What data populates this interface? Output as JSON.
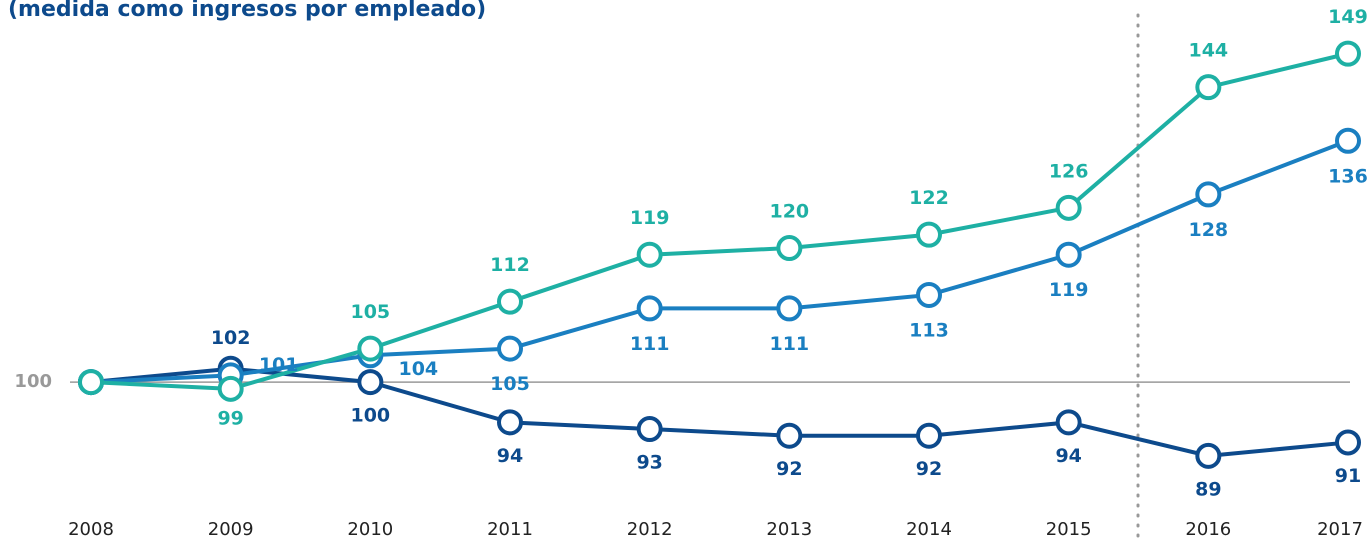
{
  "chart_data": {
    "type": "line",
    "subtitle": "(medida como ingresos por empleado)",
    "categories": [
      "2008",
      "2009",
      "2010",
      "2011",
      "2012",
      "2013",
      "2014",
      "2015",
      "2016",
      "2017"
    ],
    "series": [
      {
        "color": "#0d4a8c",
        "values": [
          100,
          102,
          100,
          94,
          93,
          92,
          92,
          94,
          89,
          91
        ]
      },
      {
        "color": "#1a7fc1",
        "values": [
          100,
          101,
          104,
          105,
          111,
          111,
          113,
          119,
          128,
          136
        ]
      },
      {
        "color": "#1eb0a4",
        "values": [
          100,
          99,
          105,
          112,
          119,
          120,
          122,
          126,
          144,
          149
        ]
      }
    ],
    "ylim": [
      76,
      157
    ],
    "yticks": [
      100
    ],
    "tick_color": "#999999"
  }
}
